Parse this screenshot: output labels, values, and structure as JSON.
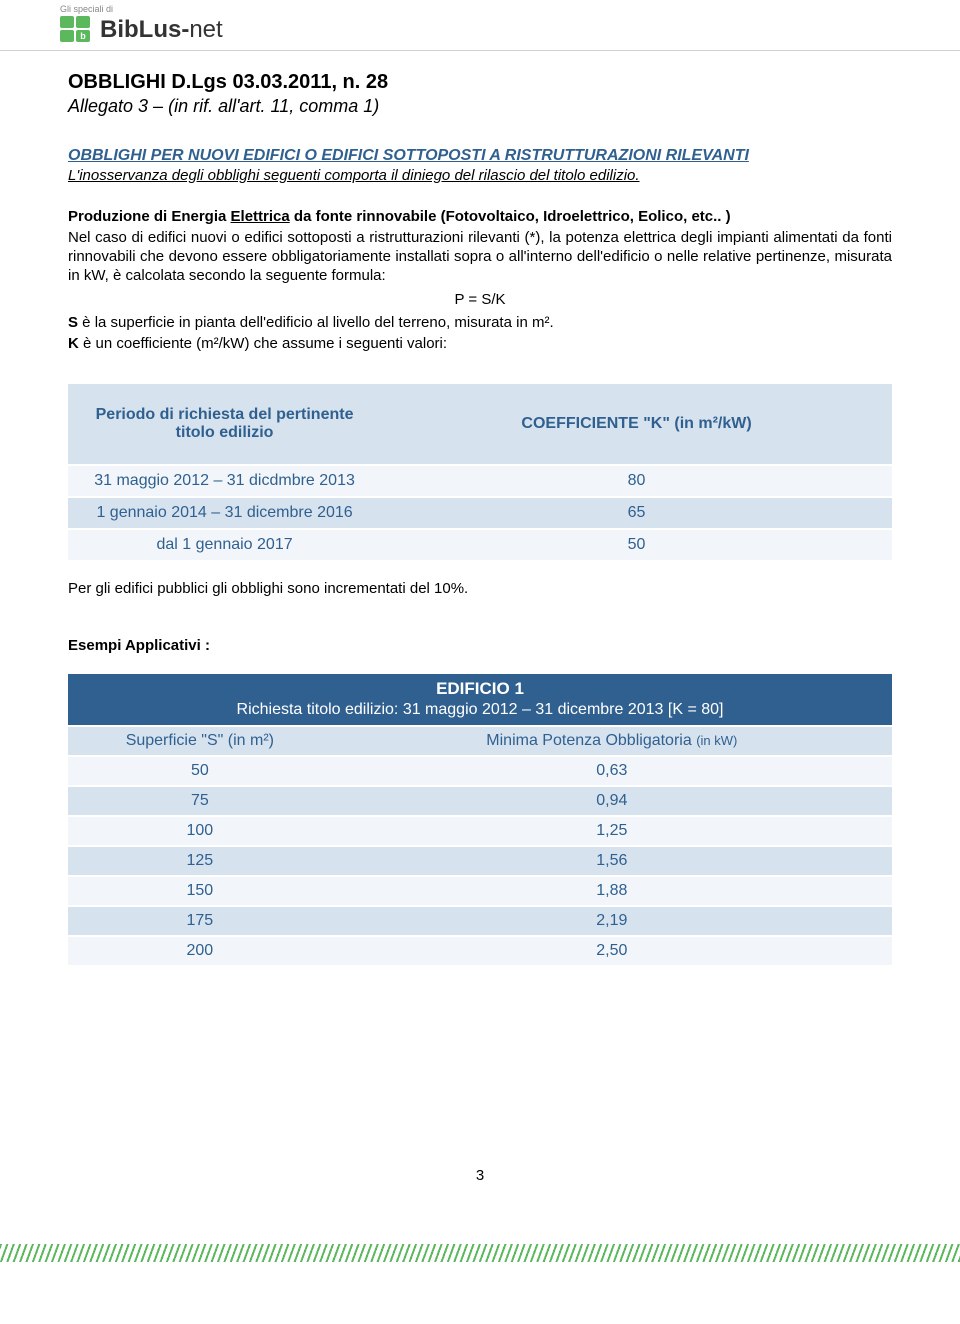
{
  "header": {
    "small_text": "Gli speciali di",
    "logo_text_a": "BibLus-",
    "logo_text_b": "net"
  },
  "doc": {
    "title": "OBBLIGHI D.Lgs 03.03.2011, n. 28",
    "subtitle": "Allegato 3 – (in rif. all'art. 11, comma 1)",
    "section_heading": "OBBLIGHI PER NUOVI EDIFICI O EDIFICI SOTTOPOSTI A RISTRUTTURAZIONI RILEVANTI",
    "note_line": "L'inosservanza degli obblighi seguenti comporta il diniego del rilascio del titolo edilizio.",
    "prod_heading_a": "Produzione di Energia ",
    "prod_heading_u": "Elettrica",
    "prod_heading_b": " da fonte rinnovabile (Fotovoltaico, Idroelettrico, Eolico, etc.. )",
    "para1": "Nel caso di edifici nuovi o edifici sottoposti a ristrutturazioni rilevanti (*), la potenza elettrica degli impianti alimentati da fonti rinnovabili che devono essere obbligatoriamente installati sopra o all'interno dell'edificio o nelle relative pertinenze, misurata in kW, è calcolata secondo la seguente formula:",
    "formula": "P = S/K",
    "def_s_pre": "S",
    "def_s": " è la superficie in pianta dell'edificio al livello del terreno, misurata in m².",
    "def_k_pre": "K",
    "def_k": " è un coefficiente (m²/kW) che assume i seguenti valori:",
    "after_table": "Per gli edifici pubblici gli obblighi sono incrementati del 10%.",
    "esempi": "Esempi Applicativi :",
    "page_num": "3"
  },
  "table1": {
    "header_col1": "Periodo di richiesta del pertinente titolo edilizio",
    "header_col2": "COEFFICIENTE \"K\" (in m²/kW)",
    "rows": [
      {
        "c1": "31 maggio 2012 – 31 dicdmbre 2013",
        "c2": "80"
      },
      {
        "c1": "1 gennaio 2014 – 31 dicembre 2016",
        "c2": "65"
      },
      {
        "c1": "dal 1 gennaio 2017",
        "c2": "50"
      }
    ]
  },
  "table2": {
    "banner_line1": "EDIFICIO 1",
    "banner_line2": "Richiesta titolo edilizio: 31 maggio 2012 – 31 dicembre 2013 [K = 80]",
    "hdr_col1": "Superficie \"S\" (in m²)",
    "hdr_col2_a": "Minima Potenza Obbligatoria ",
    "hdr_col2_b": "(in kW)",
    "rows": [
      {
        "c1": "50",
        "c2": "0,63"
      },
      {
        "c1": "75",
        "c2": "0,94"
      },
      {
        "c1": "100",
        "c2": "1,25"
      },
      {
        "c1": "125",
        "c2": "1,56"
      },
      {
        "c1": "150",
        "c2": "1,88"
      },
      {
        "c1": "175",
        "c2": "2,19"
      },
      {
        "c1": "200",
        "c2": "2,50"
      }
    ]
  },
  "colors": {
    "brand_green": "#5cb85c",
    "header_blue": "#306090",
    "row_light": "#f2f6fa",
    "row_dark": "#d6e3ef",
    "banner_blue": "#306090"
  }
}
